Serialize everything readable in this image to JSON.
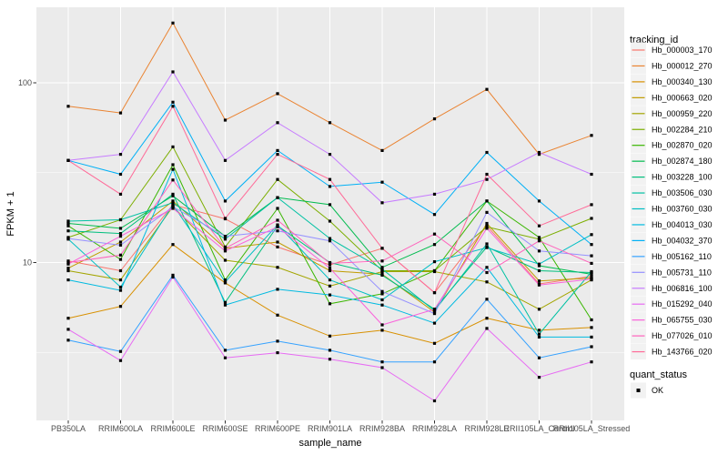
{
  "figure": {
    "background": "#FFFFFF",
    "panel_bg": "#EBEBEB",
    "grid_color": "#FFFFFF",
    "axis_text_color": "#4D4D4D",
    "tick_color": "#333333",
    "title_color": "#000000",
    "point_color": "#000000",
    "legend_key_bg": "#F2F2F2"
  },
  "axes": {
    "x_label": "sample_name",
    "y_label": "FPKM + 1",
    "y_tick_labels": [
      "100",
      "10"
    ]
  },
  "legend": {
    "tracking_title": "tracking_id",
    "quant_title": "quant_status",
    "quant_items": [
      {
        "label": "OK",
        "marker": "black-square"
      }
    ]
  },
  "chart_data": {
    "type": "line",
    "title": "",
    "xlabel": "sample_name",
    "ylabel": "FPKM + 1",
    "y_scale": "log10",
    "ylim": [
      1.32,
      263
    ],
    "y_major_ticks": [
      100,
      10
    ],
    "y_minor_ticks": [
      31.62,
      3.162
    ],
    "grid": true,
    "legend_position": "right",
    "point_marker": "square",
    "quant_status": "OK",
    "x_categories": [
      "PB350LA",
      "RRIM600LA",
      "RRIM600LE",
      "RRIM600SE",
      "RRIM600PE",
      "RRIM901LA",
      "RRIM928BA",
      "RRIM928LA",
      "RRIM928LE",
      "RRII105LA_Control",
      "RRII105LA_Stressed"
    ],
    "series": [
      {
        "name": "Hb_000003_170",
        "color": "#F8766D",
        "values": [
          10.2,
          9.0,
          21.0,
          17.5,
          12.2,
          9.7,
          12.0,
          6.8,
          16.0,
          7.6,
          8.4
        ]
      },
      {
        "name": "Hb_000012_270",
        "color": "#EA8331",
        "values": [
          74,
          68,
          215,
          62,
          87,
          60,
          42,
          63,
          92,
          40,
          51
        ]
      },
      {
        "name": "Hb_000340_130",
        "color": "#D89000",
        "values": [
          4.9,
          5.7,
          12.6,
          7.7,
          5.1,
          3.9,
          4.2,
          3.55,
          4.9,
          4.2,
          4.35
        ]
      },
      {
        "name": "Hb_000663_020",
        "color": "#C09B00",
        "values": [
          9.3,
          13.0,
          22.0,
          12.0,
          13.0,
          9.0,
          8.6,
          5.3,
          16.5,
          7.9,
          8.2
        ]
      },
      {
        "name": "Hb_000959_220",
        "color": "#A3A500",
        "values": [
          9.0,
          8.0,
          20.5,
          10.3,
          9.4,
          7.4,
          8.9,
          8.9,
          7.8,
          5.5,
          8.0
        ]
      },
      {
        "name": "Hb_002284_210",
        "color": "#7CAE00",
        "values": [
          13.8,
          17.3,
          44.0,
          12.2,
          29.0,
          17.0,
          9.0,
          9.0,
          15.8,
          13.5,
          17.6
        ]
      },
      {
        "name": "Hb_002870_020",
        "color": "#39B600",
        "values": [
          16.0,
          10.4,
          35.0,
          8.0,
          20.0,
          5.9,
          6.7,
          9.0,
          22.0,
          13.8,
          4.8
        ]
      },
      {
        "name": "Hb_002874_180",
        "color": "#00BB4E",
        "values": [
          16.5,
          15.5,
          23.5,
          14.0,
          23.0,
          21.0,
          9.4,
          12.6,
          22.0,
          9.6,
          8.6
        ]
      },
      {
        "name": "Hb_003228_100",
        "color": "#00BF7D",
        "values": [
          15.0,
          14.5,
          24.0,
          6.0,
          16.0,
          10.0,
          8.5,
          5.5,
          12.2,
          9.0,
          8.8
        ]
      },
      {
        "name": "Hb_003506_030",
        "color": "#00C1A3",
        "values": [
          17.0,
          17.3,
          21.5,
          13.5,
          23.0,
          13.6,
          9.2,
          5.4,
          12.7,
          4.0,
          8.9
        ]
      },
      {
        "name": "Hb_003760_030",
        "color": "#00BFC4",
        "values": [
          13.5,
          7.3,
          21.0,
          7.8,
          16.2,
          8.0,
          6.2,
          10.1,
          12.1,
          9.8,
          14.3
        ]
      },
      {
        "name": "Hb_004013_030",
        "color": "#00BAE0",
        "values": [
          8.0,
          7.0,
          33.0,
          5.8,
          7.1,
          6.6,
          5.8,
          4.6,
          9.4,
          3.85,
          3.85
        ]
      },
      {
        "name": "Hb_004032_370",
        "color": "#00B0F6",
        "values": [
          37,
          31,
          78,
          22,
          42,
          26.5,
          28,
          18.5,
          41,
          22,
          12.6
        ]
      },
      {
        "name": "Hb_005162_110",
        "color": "#35A2FF",
        "values": [
          3.7,
          3.2,
          8.5,
          3.25,
          3.65,
          3.25,
          2.8,
          2.8,
          6.25,
          2.95,
          3.4
        ]
      },
      {
        "name": "Hb_005731_110",
        "color": "#9590FF",
        "values": [
          13.6,
          12.5,
          20.4,
          14.0,
          15.0,
          13.2,
          6.9,
          5.2,
          19.0,
          11.6,
          10.9
        ]
      },
      {
        "name": "Hb_006816_100",
        "color": "#C77CFF",
        "values": [
          37,
          40,
          115,
          37,
          60,
          40,
          21.5,
          24,
          29,
          41,
          31
        ]
      },
      {
        "name": "Hb_015292_040",
        "color": "#E76BF3",
        "values": [
          4.25,
          2.85,
          8.3,
          2.95,
          3.15,
          2.9,
          2.6,
          1.7,
          4.3,
          2.3,
          2.8
        ]
      },
      {
        "name": "Hb_065755_030",
        "color": "#FA62DB",
        "values": [
          9.8,
          14.0,
          20.0,
          11.6,
          15.8,
          9.3,
          4.5,
          5.5,
          15.5,
          7.5,
          8.1
        ]
      },
      {
        "name": "Hb_077026_010",
        "color": "#FF62BC",
        "values": [
          10.0,
          11.0,
          28.8,
          12.0,
          17.2,
          9.9,
          10.2,
          14.4,
          8.8,
          13.2,
          9.9
        ]
      },
      {
        "name": "Hb_143766_020",
        "color": "#FF6A98",
        "values": [
          37,
          24,
          74,
          17.6,
          40,
          29,
          12.0,
          6.8,
          31,
          16,
          21
        ]
      }
    ]
  }
}
